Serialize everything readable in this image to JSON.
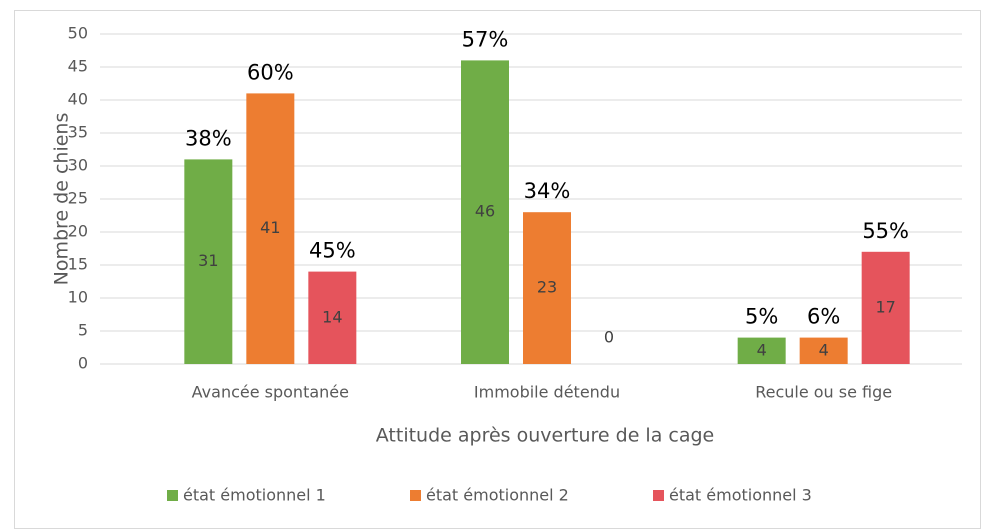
{
  "chart_data": {
    "type": "bar",
    "categories": [
      "Avancée spontanée",
      "Immobile détendu",
      "Recule ou se fige"
    ],
    "series": [
      {
        "name": "état émotionnel 1",
        "color": "#70ad47",
        "values": [
          31,
          46,
          4
        ],
        "percent_labels": [
          "38%",
          "57%",
          "5%"
        ]
      },
      {
        "name": "état émotionnel 2",
        "color": "#ed7d31",
        "values": [
          41,
          23,
          4
        ],
        "percent_labels": [
          "60%",
          "34%",
          "6%"
        ]
      },
      {
        "name": "état émotionnel 3",
        "color": "#e5545c",
        "values": [
          14,
          0,
          17
        ],
        "percent_labels": [
          "45%",
          null,
          "55%"
        ]
      }
    ],
    "xlabel": "Attitude après ouverture de la cage",
    "ylabel": "Nombre de chiens",
    "ylim": [
      0,
      50
    ],
    "yticks": [
      0,
      5,
      10,
      15,
      20,
      25,
      30,
      35,
      40,
      45,
      50
    ],
    "grid": true,
    "legend": "bottom"
  }
}
